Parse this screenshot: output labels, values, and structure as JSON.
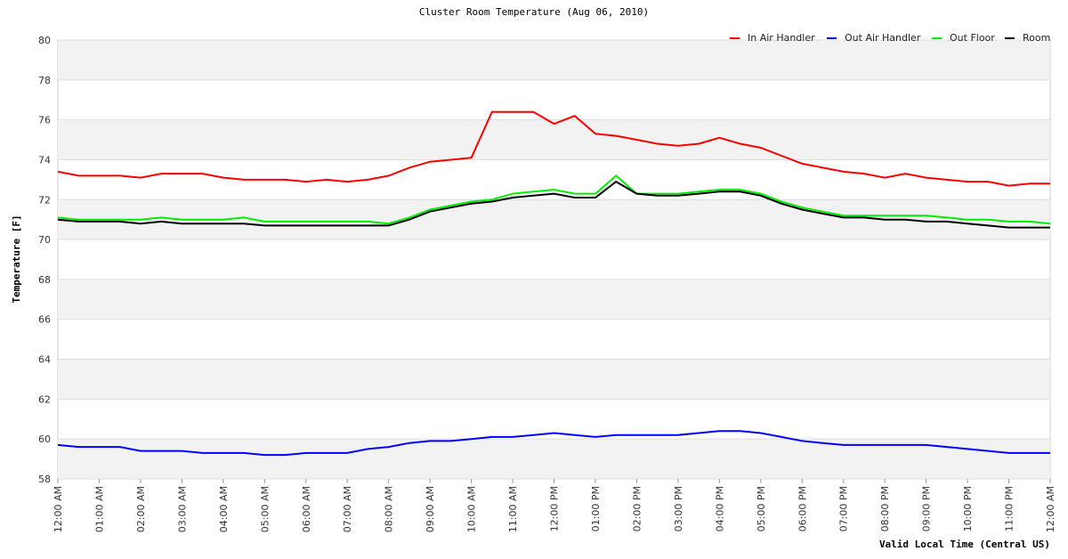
{
  "chart_data": {
    "type": "line",
    "title": "Cluster Room Temperature (Aug 06, 2010)",
    "xlabel": "Valid Local Time (Central US)",
    "ylabel": "Temperature [F]",
    "ylim": [
      58,
      80
    ],
    "yticks": [
      58,
      60,
      62,
      64,
      66,
      68,
      70,
      72,
      74,
      76,
      78,
      80
    ],
    "xlim": [
      0,
      24
    ],
    "xtick_labels": [
      "12:00 AM",
      "01:00 AM",
      "02:00 AM",
      "03:00 AM",
      "04:00 AM",
      "05:00 AM",
      "06:00 AM",
      "07:00 AM",
      "08:00 AM",
      "09:00 AM",
      "10:00 AM",
      "11:00 AM",
      "12:00 PM",
      "01:00 PM",
      "02:00 PM",
      "03:00 PM",
      "04:00 PM",
      "05:00 PM",
      "06:00 PM",
      "07:00 PM",
      "08:00 PM",
      "09:00 PM",
      "10:00 PM",
      "11:00 PM",
      "12:00 AM"
    ],
    "legend_position": "top-right",
    "grid": true,
    "x": [
      0,
      0.5,
      1,
      1.5,
      2,
      2.5,
      3,
      3.5,
      4,
      4.5,
      5,
      5.5,
      6,
      6.5,
      7,
      7.5,
      8,
      8.5,
      9,
      9.5,
      10,
      10.5,
      11,
      11.5,
      12,
      12.5,
      13,
      13.5,
      14,
      14.5,
      15,
      15.5,
      16,
      16.5,
      17,
      17.5,
      18,
      18.5,
      19,
      19.5,
      20,
      20.5,
      21,
      21.5,
      22,
      22.5,
      23,
      23.5,
      24
    ],
    "series": [
      {
        "name": "In Air Handler",
        "color": "#ff0000",
        "values": [
          73.4,
          73.2,
          73.2,
          73.2,
          73.1,
          73.3,
          73.3,
          73.3,
          73.1,
          73.0,
          73.0,
          73.0,
          72.9,
          73.0,
          72.9,
          73.0,
          73.2,
          73.6,
          73.9,
          74.0,
          74.1,
          76.4,
          76.4,
          76.4,
          75.8,
          76.2,
          75.3,
          75.2,
          75.0,
          74.8,
          74.7,
          74.8,
          75.1,
          74.8,
          74.6,
          74.2,
          73.8,
          73.6,
          73.4,
          73.3,
          73.1,
          73.3,
          73.1,
          73.0,
          72.9,
          72.9,
          72.7,
          72.8,
          72.8
        ]
      },
      {
        "name": "Out Air Handler",
        "color": "#0000ff",
        "values": [
          59.7,
          59.6,
          59.6,
          59.6,
          59.4,
          59.4,
          59.4,
          59.3,
          59.3,
          59.3,
          59.2,
          59.2,
          59.3,
          59.3,
          59.3,
          59.5,
          59.6,
          59.8,
          59.9,
          59.9,
          60.0,
          60.1,
          60.1,
          60.2,
          60.3,
          60.2,
          60.1,
          60.2,
          60.2,
          60.2,
          60.2,
          60.3,
          60.4,
          60.4,
          60.3,
          60.1,
          59.9,
          59.8,
          59.7,
          59.7,
          59.7,
          59.7,
          59.7,
          59.6,
          59.5,
          59.4,
          59.3,
          59.3,
          59.3
        ]
      },
      {
        "name": "Out Floor",
        "color": "#00ee00",
        "values": [
          71.1,
          71.0,
          71.0,
          71.0,
          71.0,
          71.1,
          71.0,
          71.0,
          71.0,
          71.1,
          70.9,
          70.9,
          70.9,
          70.9,
          70.9,
          70.9,
          70.8,
          71.1,
          71.5,
          71.7,
          71.9,
          72.0,
          72.3,
          72.4,
          72.5,
          72.3,
          72.3,
          73.2,
          72.3,
          72.3,
          72.3,
          72.4,
          72.5,
          72.5,
          72.3,
          71.9,
          71.6,
          71.4,
          71.2,
          71.2,
          71.2,
          71.2,
          71.2,
          71.1,
          71.0,
          71.0,
          70.9,
          70.9,
          70.8
        ]
      },
      {
        "name": "Room",
        "color": "#000000",
        "values": [
          71.0,
          70.9,
          70.9,
          70.9,
          70.8,
          70.9,
          70.8,
          70.8,
          70.8,
          70.8,
          70.7,
          70.7,
          70.7,
          70.7,
          70.7,
          70.7,
          70.7,
          71.0,
          71.4,
          71.6,
          71.8,
          71.9,
          72.1,
          72.2,
          72.3,
          72.1,
          72.1,
          72.9,
          72.3,
          72.2,
          72.2,
          72.3,
          72.4,
          72.4,
          72.2,
          71.8,
          71.5,
          71.3,
          71.1,
          71.1,
          71.0,
          71.0,
          70.9,
          70.9,
          70.8,
          70.7,
          70.6,
          70.6,
          70.6
        ]
      }
    ]
  }
}
